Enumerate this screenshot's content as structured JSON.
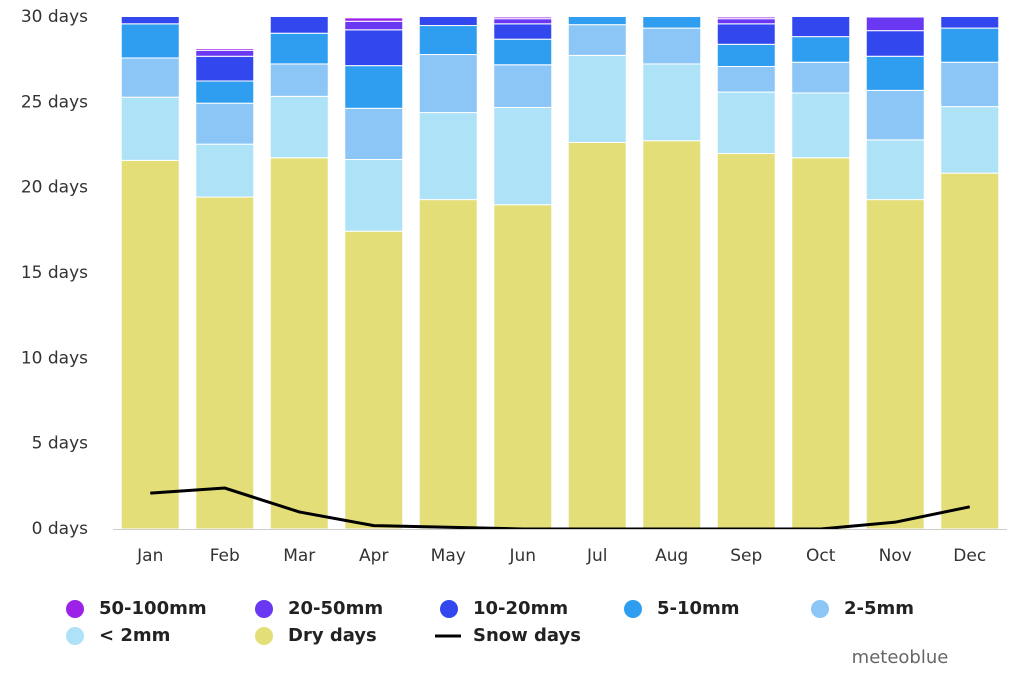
{
  "chart_data": {
    "type": "bar",
    "stacked": true,
    "credit": "meteoblue",
    "categories": [
      "Jan",
      "Feb",
      "Mar",
      "Apr",
      "May",
      "Jun",
      "Jul",
      "Aug",
      "Sep",
      "Oct",
      "Nov",
      "Dec"
    ],
    "ylim": [
      0,
      30
    ],
    "yticks": [
      {
        "value": 0,
        "label": "0 days"
      },
      {
        "value": 5,
        "label": "5 days"
      },
      {
        "value": 10,
        "label": "10 days"
      },
      {
        "value": 15,
        "label": "15 days"
      },
      {
        "value": 20,
        "label": "20 days"
      },
      {
        "value": 25,
        "label": "25 days"
      },
      {
        "value": 30,
        "label": "30 days"
      }
    ],
    "series": [
      {
        "name": "50-100mm",
        "type": "bar",
        "color": "#9b22e6",
        "values": [
          0,
          0.1,
          0,
          0.2,
          0,
          0.1,
          0,
          0,
          0.1,
          0,
          0,
          0
        ]
      },
      {
        "name": "20-50mm",
        "type": "bar",
        "color": "#6a38f3",
        "values": [
          0.3,
          0.35,
          0.2,
          0.5,
          0.1,
          0.3,
          0,
          0,
          0.3,
          0.2,
          0.8,
          0.1
        ]
      },
      {
        "name": "10-20mm",
        "type": "bar",
        "color": "#3347ef",
        "values": [
          1.1,
          1.45,
          1.7,
          2.1,
          1.4,
          0.9,
          0,
          0.2,
          1.2,
          1.8,
          1.5,
          1.5
        ]
      },
      {
        "name": "5-10mm",
        "type": "bar",
        "color": "#2f9df0",
        "values": [
          2.0,
          1.3,
          1.8,
          2.5,
          1.7,
          1.5,
          1.5,
          1.4,
          1.3,
          1.5,
          2.0,
          2.0
        ]
      },
      {
        "name": "2-5mm",
        "type": "bar",
        "color": "#8cc6f6",
        "values": [
          2.3,
          2.4,
          1.9,
          3.0,
          3.4,
          2.5,
          1.8,
          2.1,
          1.5,
          1.8,
          2.9,
          2.6
        ]
      },
      {
        "name": "< 2mm",
        "type": "bar",
        "color": "#ade2f7",
        "values": [
          3.7,
          3.1,
          3.6,
          4.2,
          5.1,
          5.7,
          5.1,
          4.5,
          3.6,
          3.8,
          3.5,
          3.9
        ]
      },
      {
        "name": "Dry days",
        "type": "bar",
        "color": "#e3de78",
        "values": [
          21.6,
          19.45,
          21.75,
          17.45,
          19.3,
          19.0,
          22.65,
          22.75,
          22.0,
          21.75,
          19.3,
          20.85
        ]
      },
      {
        "name": "Snow days",
        "type": "line",
        "color": "#000000",
        "values": [
          2.1,
          2.4,
          1.0,
          0.2,
          0.1,
          0,
          0,
          0,
          0,
          0,
          0.4,
          1.3
        ]
      }
    ]
  }
}
